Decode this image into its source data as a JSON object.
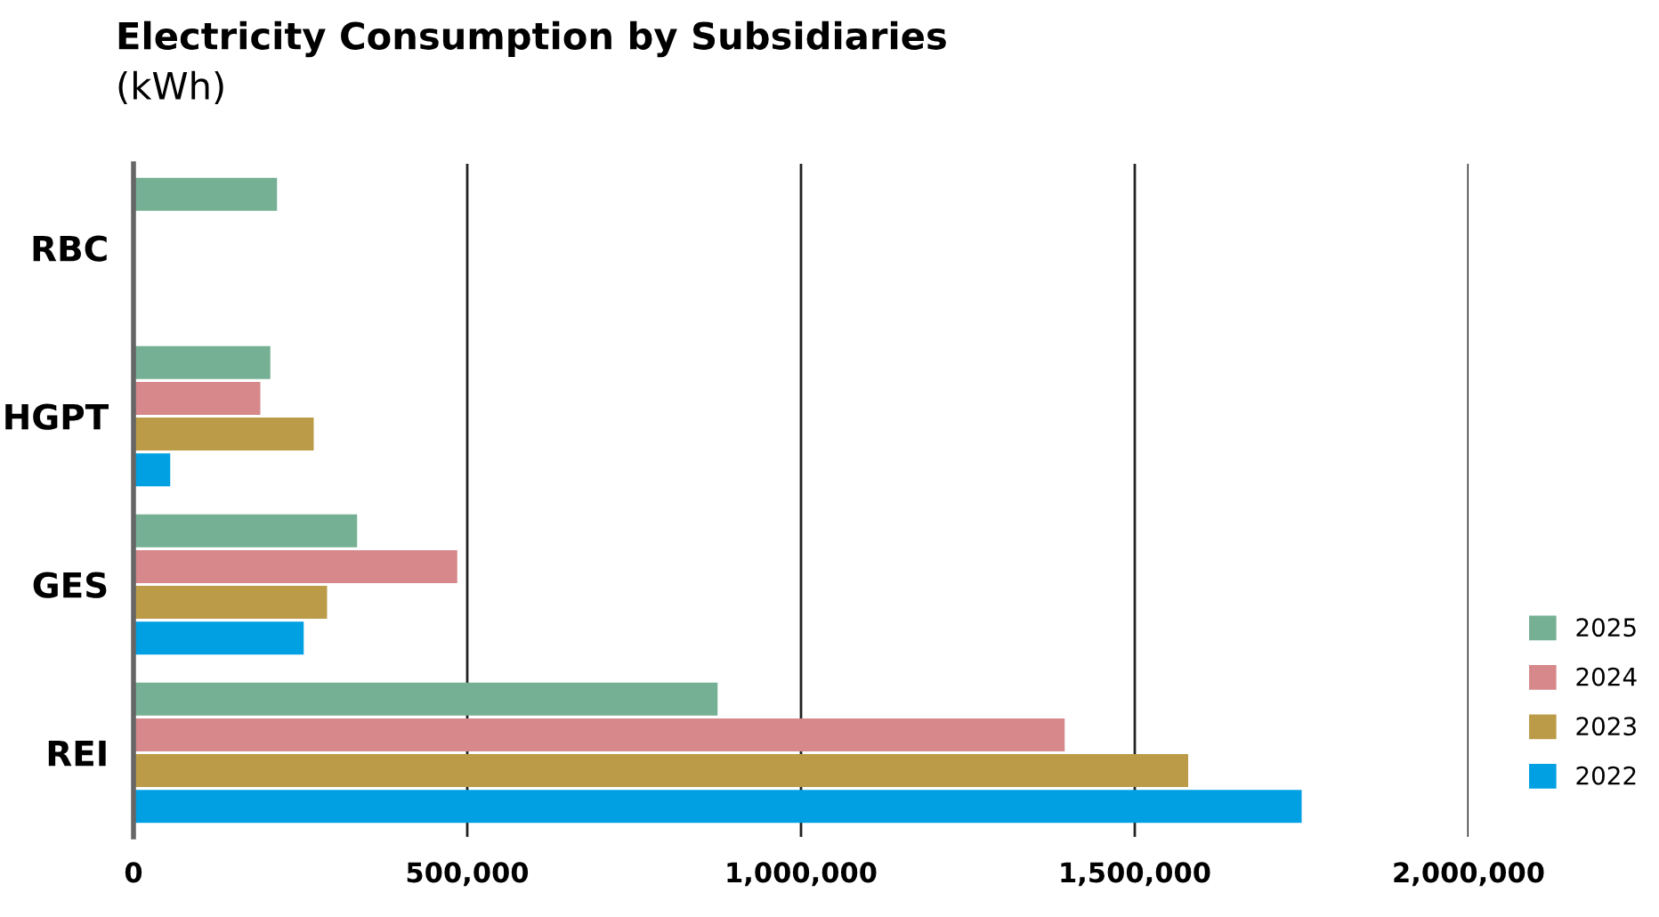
{
  "chart_data": {
    "type": "bar",
    "orientation": "horizontal",
    "title": "Electricity Consumption by Subsidiaries",
    "subtitle": "(kWh)",
    "categories": [
      "RBC",
      "HGPT",
      "GES",
      "REI"
    ],
    "series": [
      {
        "name": "2025",
        "color": "#76b094",
        "values": [
          215000,
          205000,
          335000,
          875000
        ]
      },
      {
        "name": "2024",
        "color": "#d6888a",
        "values": [
          null,
          190000,
          485000,
          1395000
        ]
      },
      {
        "name": "2023",
        "color": "#bb9b48",
        "values": [
          null,
          270000,
          290000,
          1580000
        ]
      },
      {
        "name": "2022",
        "color": "#00a0e3",
        "values": [
          null,
          55000,
          255000,
          1750000
        ]
      }
    ],
    "xlim": [
      0,
      2000000
    ],
    "xticks": [
      {
        "value": 0,
        "label": "0"
      },
      {
        "value": 500000,
        "label": "500,000"
      },
      {
        "value": 1000000,
        "label": "1,000,000"
      },
      {
        "value": 1500000,
        "label": "1,500,000"
      },
      {
        "value": 2000000,
        "label": "2,000,000"
      }
    ],
    "grid": "x",
    "legend": "right"
  }
}
